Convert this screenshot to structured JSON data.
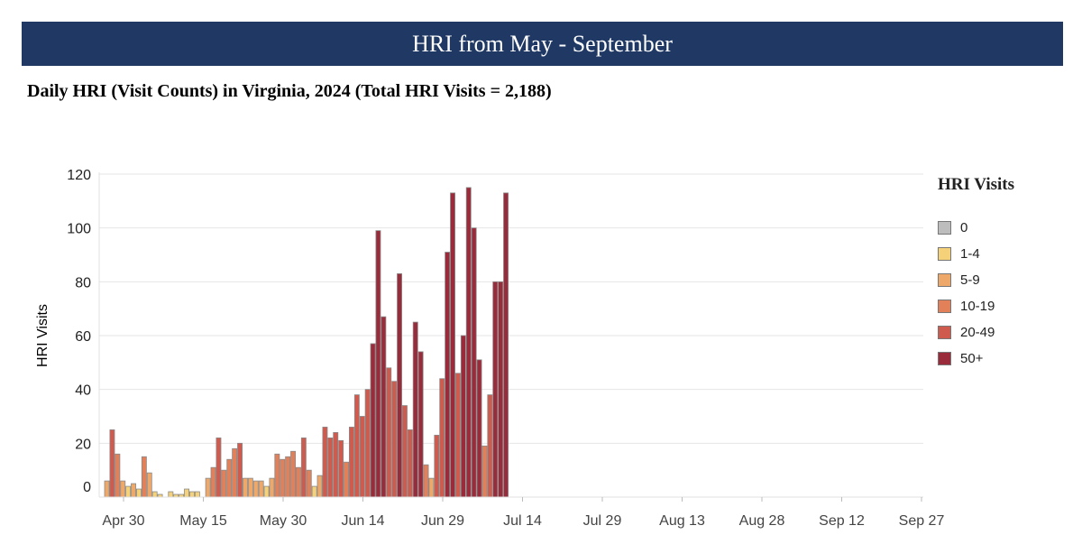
{
  "banner": {
    "title": "HRI from May - September"
  },
  "chart_data": {
    "type": "bar",
    "title": "Daily HRI (Visit Counts) in Virginia, 2024 (Total HRI Visits = 2,188)",
    "xlabel": "",
    "ylabel": "HRI Visits",
    "ylim": [
      0,
      120
    ],
    "yticks": [
      0,
      20,
      40,
      60,
      80,
      100,
      120
    ],
    "xticks": [
      "Apr 30",
      "May 15",
      "May 30",
      "Jun 14",
      "Jun 29",
      "Jul 14",
      "Jul 29",
      "Aug 13",
      "Aug 28",
      "Sep 12",
      "Sep 27"
    ],
    "x_start": "Apr 30",
    "x_end": "Sep 27",
    "values": [
      6,
      25,
      16,
      6,
      4,
      5,
      3,
      15,
      9,
      2,
      1,
      0,
      2,
      1,
      1,
      3,
      2,
      2,
      0,
      7,
      11,
      22,
      10,
      14,
      18,
      20,
      7,
      7,
      6,
      6,
      4,
      7,
      16,
      14,
      15,
      17,
      11,
      22,
      10,
      4,
      8,
      26,
      22,
      24,
      21,
      13,
      26,
      38,
      30,
      40,
      57,
      99,
      67,
      48,
      43,
      83,
      34,
      25,
      65,
      54,
      12,
      7,
      23,
      44,
      91,
      113,
      46,
      60,
      115,
      100,
      51,
      19,
      38,
      80,
      80,
      113
    ],
    "grid": true,
    "legend": {
      "title": "HRI Visits",
      "position": "right",
      "entries": [
        {
          "label": "0",
          "color": "#bdbdbd"
        },
        {
          "label": "1-4",
          "color": "#f5d27a"
        },
        {
          "label": "5-9",
          "color": "#eea86a"
        },
        {
          "label": "10-19",
          "color": "#e2805a"
        },
        {
          "label": "20-49",
          "color": "#cf5a4e"
        },
        {
          "label": "50+",
          "color": "#9a2b3a"
        }
      ]
    }
  }
}
